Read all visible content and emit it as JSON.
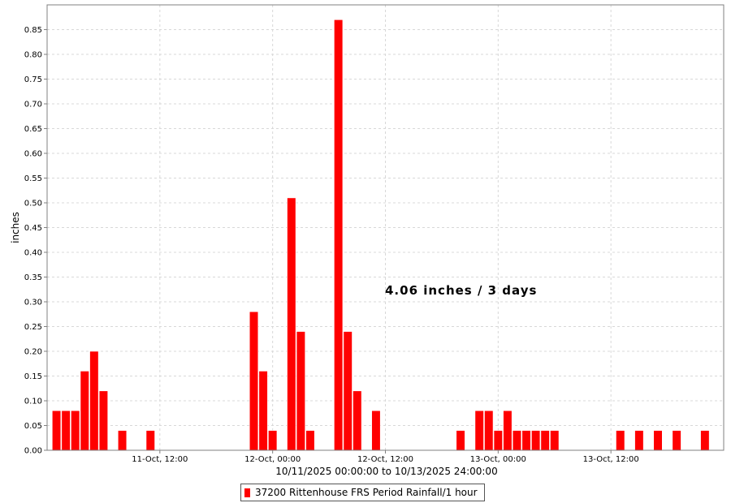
{
  "chart_data": {
    "type": "bar",
    "ylabel": "inches",
    "xlabel": "10/11/2025 00:00:00 to 10/13/2025 24:00:00",
    "annotation": "4.06 inches / 3 days",
    "ylim": [
      0,
      0.9
    ],
    "xlim_hours": [
      0,
      72
    ],
    "y_ticks": [
      "0.00",
      "0.05",
      "0.10",
      "0.15",
      "0.20",
      "0.25",
      "0.30",
      "0.35",
      "0.40",
      "0.45",
      "0.50",
      "0.55",
      "0.60",
      "0.65",
      "0.70",
      "0.75",
      "0.80",
      "0.85"
    ],
    "x_ticks": [
      {
        "hour": 12,
        "label": "11-Oct, 12:00"
      },
      {
        "hour": 24,
        "label": "12-Oct, 00:00"
      },
      {
        "hour": 36,
        "label": "12-Oct, 12:00"
      },
      {
        "hour": 48,
        "label": "13-Oct, 00:00"
      },
      {
        "hour": 60,
        "label": "13-Oct, 12:00"
      }
    ],
    "grid": true,
    "legend_position": "bottom-center",
    "series": [
      {
        "name": "37200 Rittenhouse FRS Period Rainfall/1 hour",
        "color": "#ff0000",
        "hours": [
          1,
          2,
          3,
          4,
          5,
          6,
          8,
          11,
          22,
          23,
          24,
          26,
          27,
          28,
          31,
          32,
          33,
          35,
          44,
          46,
          47,
          48,
          49,
          50,
          51,
          52,
          53,
          54,
          61,
          63,
          65,
          67,
          70
        ],
        "values": [
          0.08,
          0.08,
          0.08,
          0.16,
          0.2,
          0.12,
          0.04,
          0.04,
          0.28,
          0.16,
          0.04,
          0.51,
          0.24,
          0.04,
          0.87,
          0.24,
          0.12,
          0.08,
          0.04,
          0.08,
          0.08,
          0.04,
          0.08,
          0.04,
          0.04,
          0.04,
          0.04,
          0.04,
          0.04,
          0.04,
          0.04,
          0.04,
          0.04
        ]
      }
    ]
  }
}
